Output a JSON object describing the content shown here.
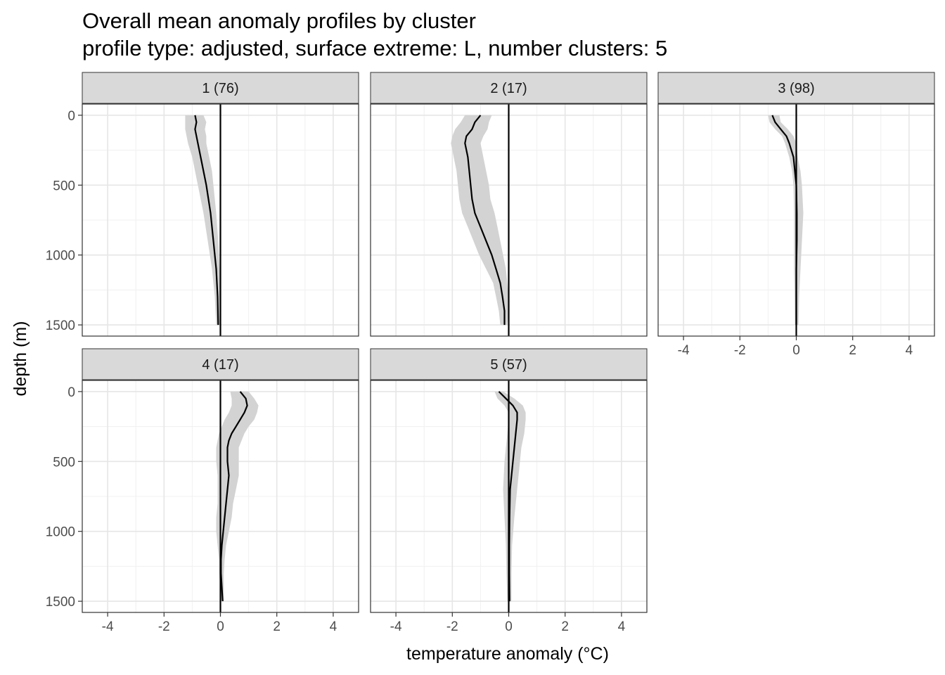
{
  "chart_data": {
    "type": "line",
    "title": "Overall mean anomaly profiles by cluster",
    "subtitle": "profile type: adjusted, surface extreme: L, number clusters: 5",
    "xlabel": "temperature anomaly (°C)",
    "ylabel": "depth (m)",
    "xlim": [
      -4.9,
      4.9
    ],
    "ylim": [
      -80,
      1580
    ],
    "y_reversed": true,
    "x_ticks": [
      -4,
      -2,
      0,
      2,
      4
    ],
    "x_tick_labels": [
      "-4",
      "-2",
      "0",
      "2",
      "4"
    ],
    "y_ticks": [
      0,
      500,
      1000,
      1500
    ],
    "y_tick_labels": [
      "0",
      "500",
      "1000",
      "1500"
    ],
    "grid": true,
    "reference_line_x": 0,
    "panels": [
      {
        "label": "1 (76)",
        "depth": [
          0,
          50,
          100,
          150,
          200,
          300,
          400,
          500,
          700,
          900,
          1100,
          1300,
          1500
        ],
        "mean": [
          -0.9,
          -0.85,
          -0.9,
          -0.85,
          -0.8,
          -0.7,
          -0.6,
          -0.5,
          -0.35,
          -0.25,
          -0.15,
          -0.1,
          -0.08
        ],
        "lower": [
          -1.25,
          -1.25,
          -1.25,
          -1.2,
          -1.15,
          -1.0,
          -0.9,
          -0.8,
          -0.6,
          -0.45,
          -0.3,
          -0.2,
          -0.15
        ],
        "upper": [
          -0.6,
          -0.5,
          -0.55,
          -0.5,
          -0.5,
          -0.4,
          -0.3,
          -0.25,
          -0.15,
          -0.08,
          -0.03,
          0.0,
          -0.02
        ]
      },
      {
        "label": "2 (17)",
        "depth": [
          0,
          50,
          100,
          150,
          200,
          300,
          400,
          500,
          600,
          700,
          800,
          900,
          1000,
          1100,
          1200,
          1300,
          1400,
          1500
        ],
        "mean": [
          -1.0,
          -1.2,
          -1.3,
          -1.5,
          -1.55,
          -1.45,
          -1.4,
          -1.35,
          -1.3,
          -1.2,
          -1.0,
          -0.8,
          -0.6,
          -0.45,
          -0.3,
          -0.22,
          -0.15,
          -0.15
        ],
        "lower": [
          -1.55,
          -1.7,
          -1.9,
          -2.0,
          -2.05,
          -1.95,
          -1.85,
          -1.8,
          -1.75,
          -1.65,
          -1.45,
          -1.25,
          -1.05,
          -0.8,
          -0.55,
          -0.45,
          -0.35,
          -0.3
        ],
        "upper": [
          -0.6,
          -0.7,
          -0.75,
          -0.9,
          -1.0,
          -0.9,
          -0.8,
          -0.7,
          -0.65,
          -0.5,
          -0.4,
          -0.3,
          -0.2,
          -0.1,
          -0.05,
          0.0,
          0.0,
          -0.05
        ]
      },
      {
        "label": "3 (98)",
        "depth": [
          0,
          50,
          100,
          150,
          200,
          300,
          400,
          500,
          700,
          900,
          1100,
          1300,
          1500
        ],
        "mean": [
          -0.85,
          -0.75,
          -0.55,
          -0.35,
          -0.25,
          -0.1,
          -0.05,
          0.0,
          0.02,
          0.02,
          0.0,
          0.0,
          0.0
        ],
        "lower": [
          -1.0,
          -0.95,
          -0.75,
          -0.5,
          -0.4,
          -0.25,
          -0.15,
          -0.1,
          -0.08,
          -0.08,
          -0.08,
          -0.06,
          -0.05
        ],
        "upper": [
          -0.6,
          -0.55,
          -0.3,
          -0.1,
          0.0,
          0.05,
          0.15,
          0.2,
          0.25,
          0.2,
          0.15,
          0.1,
          0.08
        ]
      },
      {
        "label": "4 (17)",
        "depth": [
          0,
          50,
          100,
          150,
          200,
          250,
          300,
          350,
          400,
          500,
          600,
          700,
          800,
          900,
          1000,
          1100,
          1200,
          1300,
          1400,
          1500
        ],
        "mean": [
          0.7,
          0.9,
          0.95,
          0.85,
          0.7,
          0.55,
          0.4,
          0.3,
          0.25,
          0.25,
          0.3,
          0.25,
          0.2,
          0.15,
          0.1,
          0.05,
          0.02,
          0.02,
          0.05,
          0.08
        ],
        "lower": [
          0.35,
          0.4,
          0.4,
          0.3,
          0.15,
          0.05,
          -0.05,
          -0.1,
          -0.15,
          -0.15,
          -0.1,
          -0.1,
          -0.1,
          -0.15,
          -0.15,
          -0.1,
          -0.05,
          -0.05,
          0.0,
          0.02
        ],
        "upper": [
          1.0,
          1.2,
          1.35,
          1.3,
          1.2,
          1.0,
          0.85,
          0.75,
          0.65,
          0.65,
          0.65,
          0.55,
          0.45,
          0.4,
          0.3,
          0.2,
          0.15,
          0.12,
          0.12,
          0.12
        ]
      },
      {
        "label": "5 (57)",
        "depth": [
          0,
          50,
          100,
          150,
          200,
          300,
          400,
          500,
          700,
          900,
          1100,
          1300,
          1500
        ],
        "mean": [
          -0.35,
          -0.1,
          0.15,
          0.3,
          0.3,
          0.25,
          0.2,
          0.15,
          0.05,
          0.03,
          0.02,
          0.02,
          0.03
        ],
        "lower": [
          -0.5,
          -0.4,
          -0.15,
          0.0,
          0.0,
          -0.05,
          -0.1,
          -0.15,
          -0.2,
          -0.15,
          -0.1,
          -0.08,
          -0.05
        ],
        "upper": [
          -0.2,
          0.2,
          0.5,
          0.6,
          0.6,
          0.55,
          0.45,
          0.4,
          0.3,
          0.2,
          0.12,
          0.1,
          0.1
        ]
      }
    ]
  }
}
